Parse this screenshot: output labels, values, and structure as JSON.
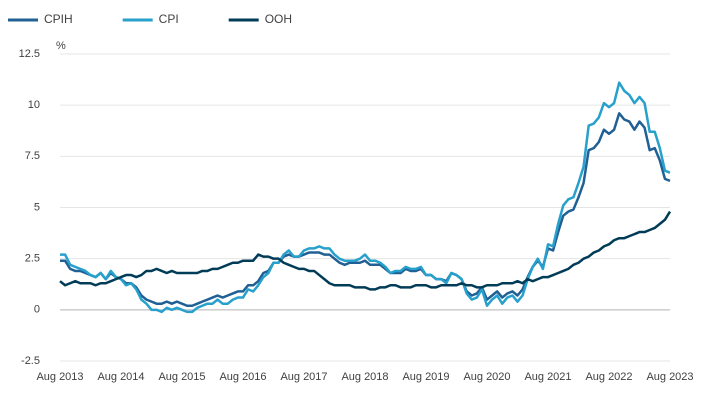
{
  "chart_data": {
    "type": "line",
    "y_label": "%",
    "categories": [
      "Aug 2013",
      null,
      null,
      null,
      null,
      null,
      null,
      null,
      null,
      null,
      null,
      null,
      "Aug 2014",
      null,
      null,
      null,
      null,
      null,
      null,
      null,
      null,
      null,
      null,
      null,
      "Aug 2015",
      null,
      null,
      null,
      null,
      null,
      null,
      null,
      null,
      null,
      null,
      null,
      "Aug 2016",
      null,
      null,
      null,
      null,
      null,
      null,
      null,
      null,
      null,
      null,
      null,
      "Aug 2017",
      null,
      null,
      null,
      null,
      null,
      null,
      null,
      null,
      null,
      null,
      null,
      "Aug 2018",
      null,
      null,
      null,
      null,
      null,
      null,
      null,
      null,
      null,
      null,
      null,
      "Aug 2019",
      null,
      null,
      null,
      null,
      null,
      null,
      null,
      null,
      null,
      null,
      null,
      "Aug 2020",
      null,
      null,
      null,
      null,
      null,
      null,
      null,
      null,
      null,
      null,
      null,
      "Aug 2021",
      null,
      null,
      null,
      null,
      null,
      null,
      null,
      null,
      null,
      null,
      null,
      "Aug 2022",
      null,
      null,
      null,
      null,
      null,
      null,
      null,
      null,
      null,
      null,
      null,
      "Aug 2023"
    ],
    "series": [
      {
        "name": "CPIH",
        "color": "#206095",
        "values": [
          2.4,
          2.4,
          2.0,
          1.9,
          1.9,
          1.8,
          1.7,
          1.6,
          1.8,
          1.5,
          1.8,
          1.6,
          1.5,
          1.3,
          1.3,
          1.1,
          0.7,
          0.5,
          0.4,
          0.3,
          0.3,
          0.4,
          0.3,
          0.4,
          0.3,
          0.2,
          0.2,
          0.3,
          0.4,
          0.5,
          0.6,
          0.7,
          0.6,
          0.7,
          0.8,
          0.9,
          0.9,
          1.2,
          1.2,
          1.4,
          1.8,
          1.9,
          2.3,
          2.3,
          2.6,
          2.7,
          2.6,
          2.6,
          2.7,
          2.8,
          2.8,
          2.8,
          2.7,
          2.7,
          2.5,
          2.3,
          2.2,
          2.3,
          2.3,
          2.3,
          2.4,
          2.2,
          2.2,
          2.2,
          2.0,
          1.8,
          1.8,
          1.8,
          2.0,
          1.9,
          1.9,
          2.0,
          1.7,
          1.7,
          1.5,
          1.5,
          1.4,
          1.8,
          1.7,
          1.5,
          0.9,
          0.7,
          0.8,
          1.1,
          0.5,
          0.7,
          0.9,
          0.6,
          0.8,
          0.9,
          0.7,
          1.0,
          1.6,
          2.1,
          2.4,
          2.1,
          3.0,
          2.9,
          3.8,
          4.6,
          4.8,
          4.9,
          5.5,
          6.2,
          7.8,
          7.9,
          8.2,
          8.8,
          8.6,
          8.8,
          9.6,
          9.3,
          9.2,
          8.8,
          9.2,
          8.9,
          7.8,
          7.9,
          7.3,
          6.4,
          6.3
        ]
      },
      {
        "name": "CPI",
        "color": "#27a0cc",
        "values": [
          2.7,
          2.7,
          2.2,
          2.1,
          2.0,
          1.9,
          1.7,
          1.6,
          1.8,
          1.5,
          1.9,
          1.6,
          1.5,
          1.2,
          1.3,
          1.0,
          0.5,
          0.3,
          0.0,
          0.0,
          -0.1,
          0.1,
          0.0,
          0.1,
          0.0,
          -0.1,
          -0.1,
          0.1,
          0.2,
          0.3,
          0.3,
          0.5,
          0.3,
          0.3,
          0.5,
          0.6,
          0.6,
          1.0,
          0.9,
          1.2,
          1.6,
          1.8,
          2.3,
          2.3,
          2.7,
          2.9,
          2.6,
          2.6,
          2.9,
          3.0,
          3.0,
          3.1,
          3.0,
          3.0,
          2.7,
          2.5,
          2.4,
          2.4,
          2.4,
          2.5,
          2.7,
          2.4,
          2.4,
          2.3,
          2.1,
          1.8,
          1.9,
          1.9,
          2.1,
          2.0,
          2.0,
          2.1,
          1.7,
          1.7,
          1.5,
          1.5,
          1.3,
          1.8,
          1.7,
          1.5,
          0.8,
          0.5,
          0.6,
          1.0,
          0.2,
          0.5,
          0.7,
          0.3,
          0.6,
          0.7,
          0.4,
          0.7,
          1.5,
          2.1,
          2.5,
          2.0,
          3.2,
          3.1,
          4.2,
          5.1,
          5.4,
          5.5,
          6.2,
          7.0,
          9.0,
          9.1,
          9.4,
          10.1,
          9.9,
          10.1,
          11.1,
          10.7,
          10.5,
          10.1,
          10.4,
          10.1,
          8.7,
          8.7,
          7.9,
          6.8,
          6.7
        ]
      },
      {
        "name": "OOH",
        "color": "#003c57",
        "values": [
          1.4,
          1.2,
          1.3,
          1.4,
          1.3,
          1.3,
          1.3,
          1.2,
          1.3,
          1.3,
          1.4,
          1.5,
          1.6,
          1.7,
          1.7,
          1.6,
          1.7,
          1.9,
          1.9,
          2.0,
          1.9,
          1.8,
          1.9,
          1.8,
          1.8,
          1.8,
          1.8,
          1.8,
          1.9,
          1.9,
          2.0,
          2.0,
          2.1,
          2.2,
          2.3,
          2.3,
          2.4,
          2.4,
          2.4,
          2.7,
          2.6,
          2.6,
          2.5,
          2.5,
          2.3,
          2.2,
          2.1,
          2.0,
          2.0,
          1.9,
          1.9,
          1.7,
          1.5,
          1.3,
          1.2,
          1.2,
          1.2,
          1.2,
          1.1,
          1.1,
          1.1,
          1.0,
          1.0,
          1.1,
          1.1,
          1.2,
          1.2,
          1.1,
          1.1,
          1.1,
          1.2,
          1.2,
          1.2,
          1.1,
          1.1,
          1.2,
          1.2,
          1.2,
          1.2,
          1.3,
          1.2,
          1.2,
          1.1,
          1.1,
          1.2,
          1.2,
          1.2,
          1.3,
          1.3,
          1.3,
          1.4,
          1.3,
          1.5,
          1.4,
          1.5,
          1.6,
          1.6,
          1.7,
          1.8,
          1.9,
          2.0,
          2.2,
          2.3,
          2.5,
          2.6,
          2.8,
          2.9,
          3.1,
          3.2,
          3.4,
          3.5,
          3.5,
          3.6,
          3.7,
          3.8,
          3.8,
          3.9,
          4.0,
          4.2,
          4.4,
          4.8
        ]
      }
    ],
    "ylim": [
      -2.5,
      12.5
    ],
    "yticks": [
      -2.5,
      0,
      2.5,
      5,
      7.5,
      10,
      12.5
    ],
    "grid": true,
    "legend": "top-left"
  }
}
